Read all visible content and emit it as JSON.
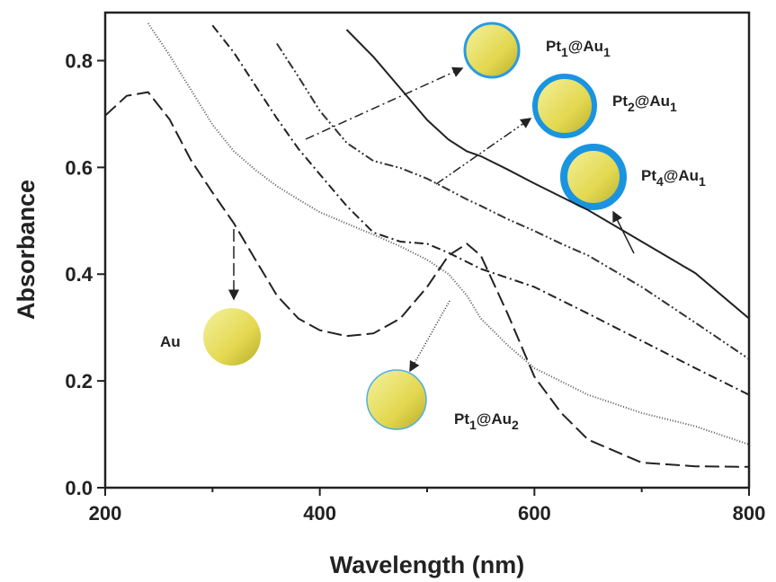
{
  "chart_data": {
    "type": "line",
    "xlabel": "Wavelength (nm)",
    "ylabel": "Absorbance",
    "x": [
      200,
      220,
      240,
      260,
      280,
      300,
      320,
      340,
      360,
      380,
      400,
      425,
      450,
      475,
      500,
      520,
      537,
      550,
      575,
      600,
      625,
      650,
      700,
      750,
      800
    ],
    "series": [
      {
        "color": "#222222",
        "dash": "16 6",
        "values": [
          0.697,
          0.734,
          0.741,
          0.69,
          0.613,
          0.553,
          0.495,
          0.427,
          0.36,
          0.317,
          0.295,
          0.284,
          0.289,
          0.317,
          0.376,
          0.435,
          0.457,
          0.435,
          0.326,
          0.208,
          0.14,
          0.09,
          0.047,
          0.04,
          0.039
        ]
      },
      {
        "color": "#555555",
        "dash": "1 2",
        "values": [
          null,
          null,
          0.87,
          0.81,
          0.745,
          0.68,
          0.63,
          0.595,
          0.565,
          0.54,
          0.516,
          0.495,
          0.474,
          0.452,
          0.427,
          0.4,
          0.36,
          0.317,
          0.267,
          0.224,
          0.199,
          0.174,
          0.14,
          0.115,
          0.081
        ]
      },
      {
        "color": "#222222",
        "dash": "10 4 2 4",
        "values": [
          null,
          null,
          null,
          null,
          null,
          0.866,
          0.815,
          0.753,
          0.692,
          0.635,
          0.587,
          0.528,
          0.478,
          0.461,
          0.457,
          0.44,
          0.423,
          0.41,
          0.393,
          0.376,
          0.351,
          0.326,
          0.275,
          0.224,
          0.174
        ]
      },
      {
        "color": "#333333",
        "dash": "10 3 2 3 2 3",
        "values": [
          null,
          null,
          null,
          null,
          null,
          null,
          null,
          null,
          0.832,
          0.77,
          0.706,
          0.646,
          0.612,
          0.599,
          0.579,
          0.558,
          0.54,
          0.528,
          0.503,
          0.481,
          0.457,
          0.435,
          0.376,
          0.309,
          0.241
        ]
      },
      {
        "color": "#222222",
        "dash": "none",
        "values": [
          null,
          null,
          null,
          null,
          null,
          null,
          null,
          null,
          null,
          null,
          null,
          0.858,
          0.807,
          0.748,
          0.689,
          0.652,
          0.63,
          0.621,
          0.596,
          0.57,
          0.545,
          0.52,
          0.461,
          0.402,
          0.317
        ]
      }
    ],
    "xlim": [
      200,
      800
    ],
    "xticks": [
      200,
      400,
      600,
      800
    ],
    "xminorticks": [
      300,
      500,
      700
    ],
    "ylim": [
      0,
      0.89
    ],
    "yticks": [
      {
        "value": 0,
        "label": "0.0"
      },
      0.2,
      0.4,
      0.6,
      0.8
    ],
    "annotations": [
      {
        "parts": [
          "Au"
        ]
      },
      {
        "parts": [
          "Pt",
          "1",
          "@Au",
          "2"
        ]
      },
      {
        "parts": [
          "Pt",
          "1",
          "@Au",
          "1"
        ]
      },
      {
        "parts": [
          "Pt",
          "2",
          "@Au",
          "1"
        ]
      },
      {
        "parts": [
          "Pt",
          "4",
          "@Au",
          "1"
        ]
      }
    ]
  }
}
